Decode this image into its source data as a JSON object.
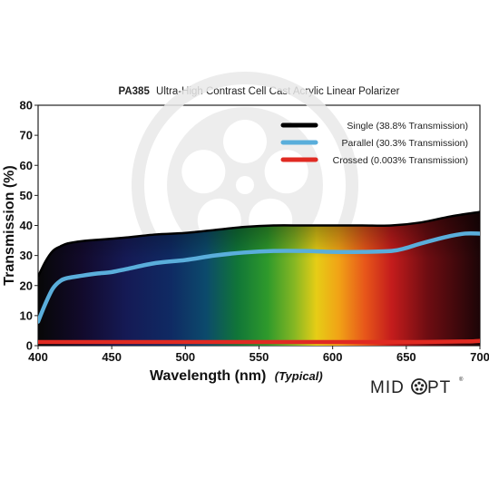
{
  "chart_data": {
    "type": "line",
    "title_bold": "PA385",
    "title_rest": "Ultra-High Contrast Cell Cast Acrylic Linear Polarizer",
    "xlabel": "Wavelength (nm)",
    "xlabel_note": "(Typical)",
    "ylabel": "Transmission (%)",
    "xlim": [
      400,
      700
    ],
    "ylim": [
      0,
      80
    ],
    "xticks": [
      400,
      450,
      500,
      550,
      600,
      650,
      700
    ],
    "yticks": [
      0,
      10,
      20,
      30,
      40,
      50,
      60,
      70,
      80
    ],
    "legend_position": "top-right",
    "series": [
      {
        "name": "Single (38.8% Transmission)",
        "color": "#000000",
        "x": [
          400,
          405,
          410,
          415,
          420,
          430,
          440,
          450,
          460,
          480,
          500,
          520,
          540,
          560,
          580,
          600,
          620,
          640,
          660,
          680,
          700
        ],
        "y": [
          23,
          28,
          31.5,
          33,
          34,
          34.8,
          35.2,
          35.6,
          36,
          37,
          37.5,
          38.5,
          39.5,
          40,
          40,
          40,
          40,
          40,
          41,
          43,
          44.5
        ]
      },
      {
        "name": "Parallel (30.3% Transmission)",
        "color": "#5aaedb",
        "x": [
          400,
          405,
          410,
          415,
          420,
          430,
          440,
          450,
          460,
          480,
          500,
          520,
          540,
          560,
          580,
          600,
          620,
          640,
          650,
          660,
          680,
          690,
          700
        ],
        "y": [
          8,
          14,
          19,
          21.5,
          22.5,
          23.3,
          24,
          24.5,
          25.5,
          27.5,
          28.5,
          30,
          31,
          31.5,
          31.5,
          31.2,
          31.2,
          31.5,
          32.5,
          34,
          36.5,
          37.3,
          37.3
        ]
      },
      {
        "name": "Crossed (0.003% Transmission)",
        "color": "#e02a22",
        "x": [
          400,
          450,
          500,
          550,
          600,
          650,
          690,
          700
        ],
        "y": [
          1.2,
          1.2,
          1.2,
          1.2,
          1.2,
          1.2,
          1.4,
          1.6
        ]
      }
    ]
  },
  "brand": {
    "left": "MID",
    "right": "PT",
    "icon": "film-reel-o-icon",
    "mark": "®"
  }
}
